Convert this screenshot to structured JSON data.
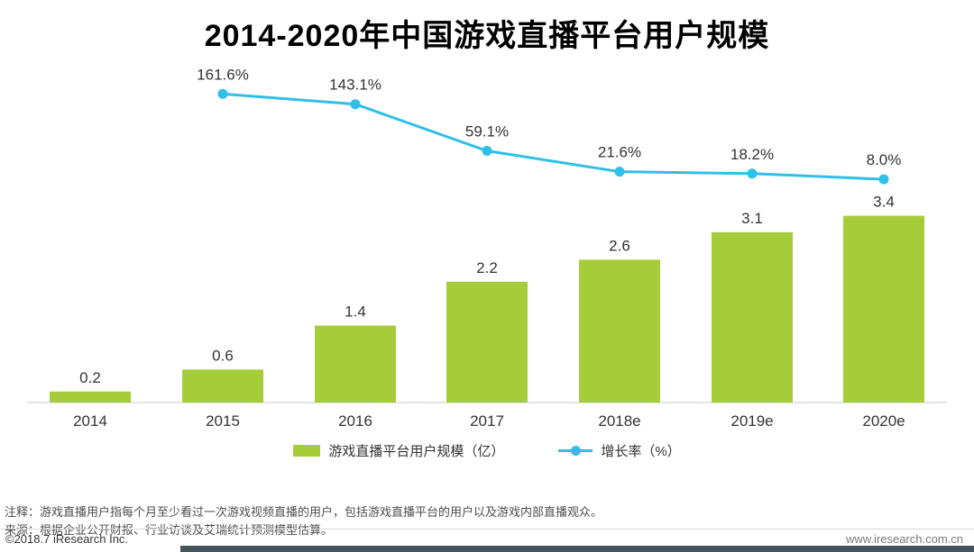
{
  "title": "2014-2020年中国游戏直播平台用户规模",
  "chart_data": {
    "type": "bar+line",
    "categories": [
      "2014",
      "2015",
      "2016",
      "2017",
      "2018e",
      "2019e",
      "2020e"
    ],
    "series": [
      {
        "name": "游戏直播平台用户规模（亿）",
        "type": "bar",
        "values": [
          0.2,
          0.6,
          1.4,
          2.2,
          2.6,
          3.1,
          3.4
        ],
        "value_labels": [
          "0.2",
          "0.6",
          "1.4",
          "2.2",
          "2.6",
          "3.1",
          "3.4"
        ],
        "color": "#a5cd39"
      },
      {
        "name": "增长率（%）",
        "type": "line",
        "values": [
          null,
          161.6,
          143.1,
          59.1,
          21.6,
          18.2,
          8.0
        ],
        "value_labels": [
          "",
          "161.6%",
          "143.1%",
          "59.1%",
          "21.6%",
          "18.2%",
          "8.0%"
        ],
        "color": "#2fbfe8"
      }
    ],
    "grid": false,
    "legend_position": "bottom",
    "left_axis_range": [
      0,
      4
    ],
    "right_axis_range": [
      0,
      200
    ]
  },
  "notes": {
    "note1": "注释：游戏直播用户指每个月至少看过一次游戏视频直播的用户，包括游戏直播平台的用户以及游戏内部直播观众。",
    "note2": "来源：根据企业公开财报、行业访谈及艾瑞统计预测模型估算。"
  },
  "footer": {
    "copyright": "©2018.7 iResearch Inc.",
    "website": "www.iresearch.com.cn"
  },
  "colors": {
    "bar": "#a5cd39",
    "line": "#2fbfe8",
    "footer_bar": "#45545b",
    "label_text": "#333333"
  }
}
